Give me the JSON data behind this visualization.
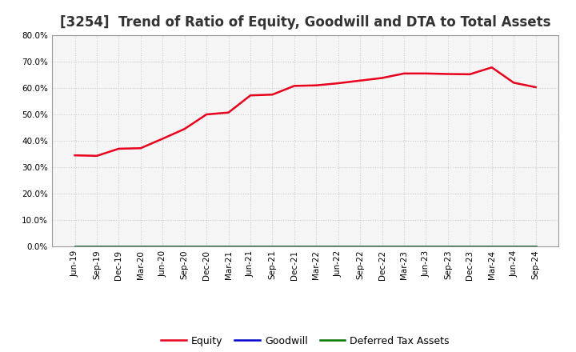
{
  "title": "[3254]  Trend of Ratio of Equity, Goodwill and DTA to Total Assets",
  "x_labels": [
    "Jun-19",
    "Sep-19",
    "Dec-19",
    "Mar-20",
    "Jun-20",
    "Sep-20",
    "Dec-20",
    "Mar-21",
    "Jun-21",
    "Sep-21",
    "Dec-21",
    "Mar-22",
    "Jun-22",
    "Sep-22",
    "Dec-22",
    "Mar-23",
    "Jun-23",
    "Sep-23",
    "Dec-23",
    "Mar-24",
    "Jun-24",
    "Sep-24"
  ],
  "equity": [
    0.345,
    0.343,
    0.37,
    0.372,
    0.408,
    0.445,
    0.5,
    0.507,
    0.572,
    0.575,
    0.608,
    0.61,
    0.618,
    0.628,
    0.638,
    0.655,
    0.655,
    0.653,
    0.652,
    0.678,
    0.62,
    0.603
  ],
  "goodwill": [
    0.0,
    0.0,
    0.0,
    0.0,
    0.0,
    0.0,
    0.0,
    0.0,
    0.0,
    0.0,
    0.0,
    0.0,
    0.0,
    0.0,
    0.0,
    0.0,
    0.0,
    0.0,
    0.0,
    0.0,
    0.0,
    0.0
  ],
  "dta": [
    0.0,
    0.0,
    0.0,
    0.0,
    0.0,
    0.0,
    0.0,
    0.0,
    0.0,
    0.0,
    0.0,
    0.0,
    0.0,
    0.0,
    0.0,
    0.0,
    0.0,
    0.0,
    0.0,
    0.0,
    0.0,
    0.0
  ],
  "equity_color": "#e8001c",
  "goodwill_color": "#0000cc",
  "dta_color": "#007700",
  "ylim": [
    0.0,
    0.8
  ],
  "yticks": [
    0.0,
    0.1,
    0.2,
    0.3,
    0.4,
    0.5,
    0.6,
    0.7,
    0.8
  ],
  "background_color": "#ffffff",
  "plot_bg_color": "#f5f5f5",
  "grid_color": "#cccccc",
  "title_fontsize": 12,
  "legend_entries": [
    "Equity",
    "Goodwill",
    "Deferred Tax Assets"
  ]
}
